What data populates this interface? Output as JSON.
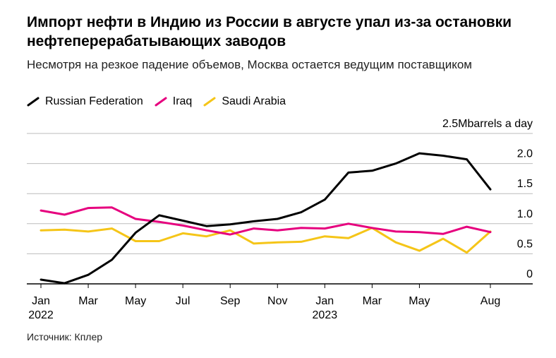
{
  "title": "Импорт нефти в Индию из России в августе упал из-за остановки нефтеперерабатывающих заводов",
  "subtitle": "Несмотря на резкое падение объемов, Москва остается ведущим поставщиком",
  "source": "Источник: Кплер",
  "colors": {
    "russia": "#000000",
    "iraq": "#e6007e",
    "saudi": "#f5c518",
    "grid": "#bbbbbb",
    "axis": "#000000"
  },
  "chart_data": {
    "type": "line",
    "unit_label": "Mbarrels a day",
    "ylim": [
      0,
      2.5
    ],
    "yticks": [
      {
        "value": 0,
        "label": "0"
      },
      {
        "value": 0.5,
        "label": "0.5"
      },
      {
        "value": 1.0,
        "label": "1.0"
      },
      {
        "value": 1.5,
        "label": "1.5"
      },
      {
        "value": 2.0,
        "label": "2.0"
      },
      {
        "value": 2.5,
        "label": "2.5"
      }
    ],
    "x": [
      "2022-01",
      "2022-02",
      "2022-03",
      "2022-04",
      "2022-05",
      "2022-06",
      "2022-07",
      "2022-08",
      "2022-09",
      "2022-10",
      "2022-11",
      "2022-12",
      "2023-01",
      "2023-02",
      "2023-03",
      "2023-04",
      "2023-05",
      "2023-06",
      "2023-07",
      "2023-08"
    ],
    "xticks": [
      {
        "x": "2022-01",
        "label": "Jan",
        "sublabel": "2022"
      },
      {
        "x": "2022-03",
        "label": "Mar",
        "sublabel": ""
      },
      {
        "x": "2022-05",
        "label": "May",
        "sublabel": ""
      },
      {
        "x": "2022-07",
        "label": "Jul",
        "sublabel": ""
      },
      {
        "x": "2022-09",
        "label": "Sep",
        "sublabel": ""
      },
      {
        "x": "2022-11",
        "label": "Nov",
        "sublabel": ""
      },
      {
        "x": "2023-01",
        "label": "Jan",
        "sublabel": "2023"
      },
      {
        "x": "2023-03",
        "label": "Mar",
        "sublabel": ""
      },
      {
        "x": "2023-05",
        "label": "May",
        "sublabel": ""
      },
      {
        "x": "2023-08",
        "label": "Aug",
        "sublabel": ""
      }
    ],
    "series": [
      {
        "name": "Russian Federation",
        "color_key": "russia",
        "values": [
          0.07,
          0.01,
          0.15,
          0.4,
          0.85,
          1.14,
          1.05,
          0.96,
          0.99,
          1.04,
          1.08,
          1.19,
          1.4,
          1.85,
          1.88,
          2.0,
          2.17,
          2.13,
          2.07,
          1.57
        ]
      },
      {
        "name": "Iraq",
        "color_key": "iraq",
        "values": [
          1.22,
          1.15,
          1.26,
          1.27,
          1.08,
          1.03,
          0.97,
          0.89,
          0.82,
          0.92,
          0.89,
          0.93,
          0.92,
          1.0,
          0.93,
          0.87,
          0.86,
          0.83,
          0.95,
          0.86
        ]
      },
      {
        "name": "Saudi Arabia",
        "color_key": "saudi",
        "values": [
          0.89,
          0.9,
          0.87,
          0.92,
          0.71,
          0.71,
          0.84,
          0.79,
          0.89,
          0.67,
          0.69,
          0.7,
          0.79,
          0.76,
          0.93,
          0.69,
          0.55,
          0.75,
          0.52,
          0.87
        ]
      }
    ]
  }
}
